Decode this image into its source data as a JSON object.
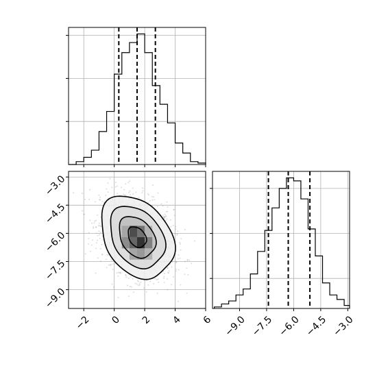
{
  "chart_data": [
    {
      "type": "histogram",
      "parameter": "x",
      "xlim": [
        -3,
        6
      ],
      "bins": [
        {
          "x0": -3.0,
          "x1": -2.5,
          "count": 0
        },
        {
          "x0": -2.5,
          "x1": -2.0,
          "count": 2
        },
        {
          "x0": -2.0,
          "x1": -1.5,
          "count": 5
        },
        {
          "x0": -1.5,
          "x1": -1.0,
          "count": 10
        },
        {
          "x0": -1.0,
          "x1": -0.5,
          "count": 23
        },
        {
          "x0": -0.5,
          "x1": 0.0,
          "count": 37
        },
        {
          "x0": 0.0,
          "x1": 0.5,
          "count": 63
        },
        {
          "x0": 0.5,
          "x1": 1.0,
          "count": 78
        },
        {
          "x0": 1.0,
          "x1": 1.5,
          "count": 85
        },
        {
          "x0": 1.5,
          "x1": 2.0,
          "count": 91
        },
        {
          "x0": 2.0,
          "x1": 2.5,
          "count": 78
        },
        {
          "x0": 2.5,
          "x1": 3.0,
          "count": 55
        },
        {
          "x0": 3.0,
          "x1": 3.5,
          "count": 42
        },
        {
          "x0": 3.5,
          "x1": 4.0,
          "count": 29
        },
        {
          "x0": 4.0,
          "x1": 4.5,
          "count": 15
        },
        {
          "x0": 4.5,
          "x1": 5.0,
          "count": 8
        },
        {
          "x0": 5.0,
          "x1": 5.5,
          "count": 2
        },
        {
          "x0": 5.5,
          "x1": 6.0,
          "count": 1
        }
      ],
      "quantiles": [
        0.3,
        1.5,
        2.7
      ],
      "grid": true,
      "x_tick_labels": false,
      "y_tick_labels": false
    },
    {
      "type": "histogram",
      "parameter": "y",
      "xlim": [
        -10.5,
        -2.9
      ],
      "xticks": [
        "−9.0",
        "−7.5",
        "−6.0",
        "−4.5",
        "−3.0"
      ],
      "xtick_values": [
        -9.0,
        -7.5,
        -6.0,
        -4.5,
        -3.0
      ],
      "bins": [
        {
          "x0": -10.4,
          "x1": -10.0,
          "count": 1
        },
        {
          "x0": -10.0,
          "x1": -9.6,
          "count": 3
        },
        {
          "x0": -9.6,
          "x1": -9.2,
          "count": 5
        },
        {
          "x0": -9.2,
          "x1": -8.8,
          "count": 9
        },
        {
          "x0": -8.8,
          "x1": -8.4,
          "count": 13
        },
        {
          "x0": -8.4,
          "x1": -8.0,
          "count": 23
        },
        {
          "x0": -8.0,
          "x1": -7.6,
          "count": 38
        },
        {
          "x0": -7.6,
          "x1": -7.2,
          "count": 52
        },
        {
          "x0": -7.2,
          "x1": -6.8,
          "count": 67
        },
        {
          "x0": -6.8,
          "x1": -6.4,
          "count": 80
        },
        {
          "x0": -6.4,
          "x1": -6.0,
          "count": 87
        },
        {
          "x0": -6.0,
          "x1": -5.6,
          "count": 85
        },
        {
          "x0": -5.6,
          "x1": -5.2,
          "count": 73
        },
        {
          "x0": -5.2,
          "x1": -4.8,
          "count": 53
        },
        {
          "x0": -4.8,
          "x1": -4.4,
          "count": 35
        },
        {
          "x0": -4.4,
          "x1": -4.0,
          "count": 17
        },
        {
          "x0": -4.0,
          "x1": -3.6,
          "count": 9
        },
        {
          "x0": -3.6,
          "x1": -3.2,
          "count": 6
        },
        {
          "x0": -3.2,
          "x1": -2.9,
          "count": 2
        }
      ],
      "quantiles": [
        -7.4,
        -6.3,
        -5.1
      ],
      "grid": true
    },
    {
      "type": "contour",
      "parameters": [
        "x",
        "y"
      ],
      "xlim": [
        -3,
        6
      ],
      "ylim": [
        -10,
        -2.7
      ],
      "xticks": [
        "−2",
        "0",
        "2",
        "4",
        "6"
      ],
      "xtick_values": [
        -2,
        0,
        2,
        4,
        6
      ],
      "yticks": [
        "−3.0",
        "−4.5",
        "−6.0",
        "−7.5",
        "−9.0"
      ],
      "ytick_values": [
        -3.0,
        -4.5,
        -6.0,
        -7.5,
        -9.0
      ],
      "center": [
        1.5,
        -6.2
      ],
      "sigma": [
        1.2,
        1.1
      ],
      "correlation": -0.3,
      "contour_levels_sigma": [
        0.5,
        1.0,
        1.5,
        2.0
      ],
      "density_cells": [
        {
          "x0": 0.5,
          "x1": 1.0,
          "y0": -6.8,
          "y1": -6.2,
          "shade": 0.45
        },
        {
          "x0": 1.0,
          "x1": 1.5,
          "y0": -6.2,
          "y1": -5.6,
          "shade": 0.7
        },
        {
          "x0": 1.0,
          "x1": 1.5,
          "y0": -6.8,
          "y1": -6.2,
          "shade": 0.6
        },
        {
          "x0": 1.5,
          "x1": 2.0,
          "y0": -6.8,
          "y1": -6.2,
          "shade": 0.8
        },
        {
          "x0": 1.5,
          "x1": 2.0,
          "y0": -6.2,
          "y1": -5.6,
          "shade": 0.55
        },
        {
          "x0": 2.0,
          "x1": 2.5,
          "y0": -6.8,
          "y1": -6.2,
          "shade": 0.5
        },
        {
          "x0": 1.0,
          "x1": 1.5,
          "y0": -7.4,
          "y1": -6.8,
          "shade": 0.35
        },
        {
          "x0": 1.5,
          "x1": 2.0,
          "y0": -7.4,
          "y1": -6.8,
          "shade": 0.4
        },
        {
          "x0": 0.5,
          "x1": 1.0,
          "y0": -6.2,
          "y1": -5.6,
          "shade": 0.35
        },
        {
          "x0": 2.0,
          "x1": 2.5,
          "y0": -6.2,
          "y1": -5.6,
          "shade": 0.3
        },
        {
          "x0": 2.0,
          "x1": 2.5,
          "y0": -7.4,
          "y1": -6.8,
          "shade": 0.3
        }
      ],
      "grid": true
    }
  ]
}
